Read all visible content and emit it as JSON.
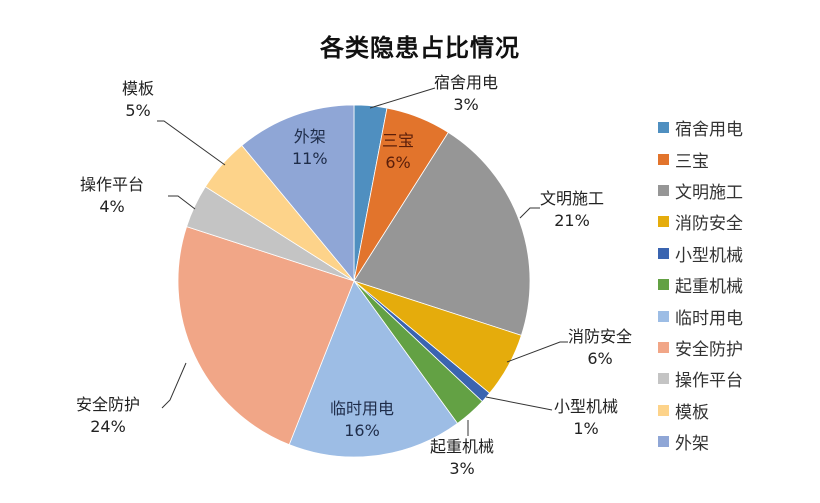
{
  "chart_data": {
    "type": "pie",
    "title": "各类隐患占比情况",
    "start_angle": "12 o'clock, clockwise",
    "legend_position": "right",
    "slices": [
      {
        "label": "宿舍用电",
        "value": 3,
        "display": "3%",
        "color": "#4F8FC0"
      },
      {
        "label": "三宝",
        "value": 6,
        "display": "6%",
        "color": "#E2742C"
      },
      {
        "label": "文明施工",
        "value": 21,
        "display": "21%",
        "color": "#969696"
      },
      {
        "label": "消防安全",
        "value": 6,
        "display": "6%",
        "color": "#E5AC0C"
      },
      {
        "label": "小型机械",
        "value": 1,
        "display": "1%",
        "color": "#3A64B0"
      },
      {
        "label": "起重机械",
        "value": 3,
        "display": "3%",
        "color": "#63A144"
      },
      {
        "label": "临时用电",
        "value": 16,
        "display": "16%",
        "color": "#9DBDE5"
      },
      {
        "label": "安全防护",
        "value": 24,
        "display": "24%",
        "color": "#F1A687"
      },
      {
        "label": "操作平台",
        "value": 4,
        "display": "4%",
        "color": "#C4C4C4"
      },
      {
        "label": "模板",
        "value": 5,
        "display": "5%",
        "color": "#FDD38A"
      },
      {
        "label": "外架",
        "value": 11,
        "display": "11%",
        "color": "#8FA6D6"
      }
    ]
  },
  "labels": [
    {
      "name": "宿舍用电",
      "pct": "3%"
    },
    {
      "name": "三宝",
      "pct": "6%"
    },
    {
      "name": "文明施工",
      "pct": "21%"
    },
    {
      "name": "消防安全",
      "pct": "6%"
    },
    {
      "name": "小型机械",
      "pct": "1%"
    },
    {
      "name": "起重机械",
      "pct": "3%"
    },
    {
      "name": "临时用电",
      "pct": "16%"
    },
    {
      "name": "安全防护",
      "pct": "24%"
    },
    {
      "name": "操作平台",
      "pct": "4%"
    },
    {
      "name": "模板",
      "pct": "5%"
    },
    {
      "name": "外架",
      "pct": "11%"
    }
  ],
  "legend": [
    "宿舍用电",
    "三宝",
    "文明施工",
    "消防安全",
    "小型机械",
    "起重机械",
    "临时用电",
    "安全防护",
    "操作平台",
    "模板",
    "外架"
  ]
}
